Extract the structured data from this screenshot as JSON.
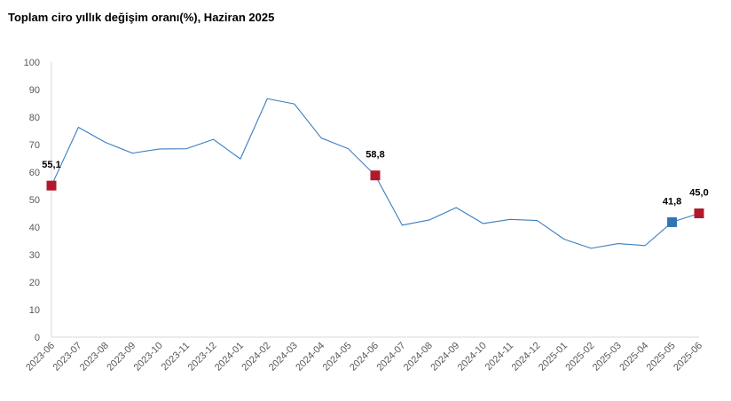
{
  "title": "Toplam ciro yıllık değişim oranı(%), Haziran 2025",
  "colors": {
    "line": "#3a7dbf",
    "marker_red": "#b2182b",
    "marker_blue": "#2e75b6",
    "axis": "#d9d9d9",
    "text": "#595959"
  },
  "chart_data": {
    "type": "line",
    "title": "Toplam ciro yıllık değişim oranı(%), Haziran 2025",
    "xlabel": "",
    "ylabel": "",
    "ylim": [
      0,
      100
    ],
    "yticks": [
      0,
      10,
      20,
      30,
      40,
      50,
      60,
      70,
      80,
      90,
      100
    ],
    "grid": false,
    "legend": "none",
    "categories": [
      "2023-06",
      "2023-07",
      "2023-08",
      "2023-09",
      "2023-10",
      "2023-11",
      "2023-12",
      "2024-01",
      "2024-02",
      "2024-03",
      "2024-04",
      "2024-05",
      "2024-06",
      "2024-07",
      "2024-08",
      "2024-09",
      "2024-10",
      "2024-11",
      "2024-12",
      "2025-01",
      "2025-02",
      "2025-03",
      "2025-04",
      "2025-05",
      "2025-06"
    ],
    "series": [
      {
        "values": [
          55.1,
          76.3,
          70.8,
          66.9,
          68.4,
          68.5,
          71.9,
          64.8,
          86.7,
          84.8,
          72.4,
          68.5,
          58.8,
          40.7,
          42.6,
          47.1,
          41.3,
          42.8,
          42.4,
          35.6,
          32.3,
          34.0,
          33.3,
          41.8,
          45.0
        ]
      }
    ],
    "highlighted_points": [
      {
        "category": "2023-06",
        "value": 55.1,
        "label": "55,1",
        "marker": "red"
      },
      {
        "category": "2024-06",
        "value": 58.8,
        "label": "58,8",
        "marker": "red"
      },
      {
        "category": "2025-05",
        "value": 41.8,
        "label": "41,8",
        "marker": "blue"
      },
      {
        "category": "2025-06",
        "value": 45.0,
        "label": "45,0",
        "marker": "red"
      }
    ]
  }
}
